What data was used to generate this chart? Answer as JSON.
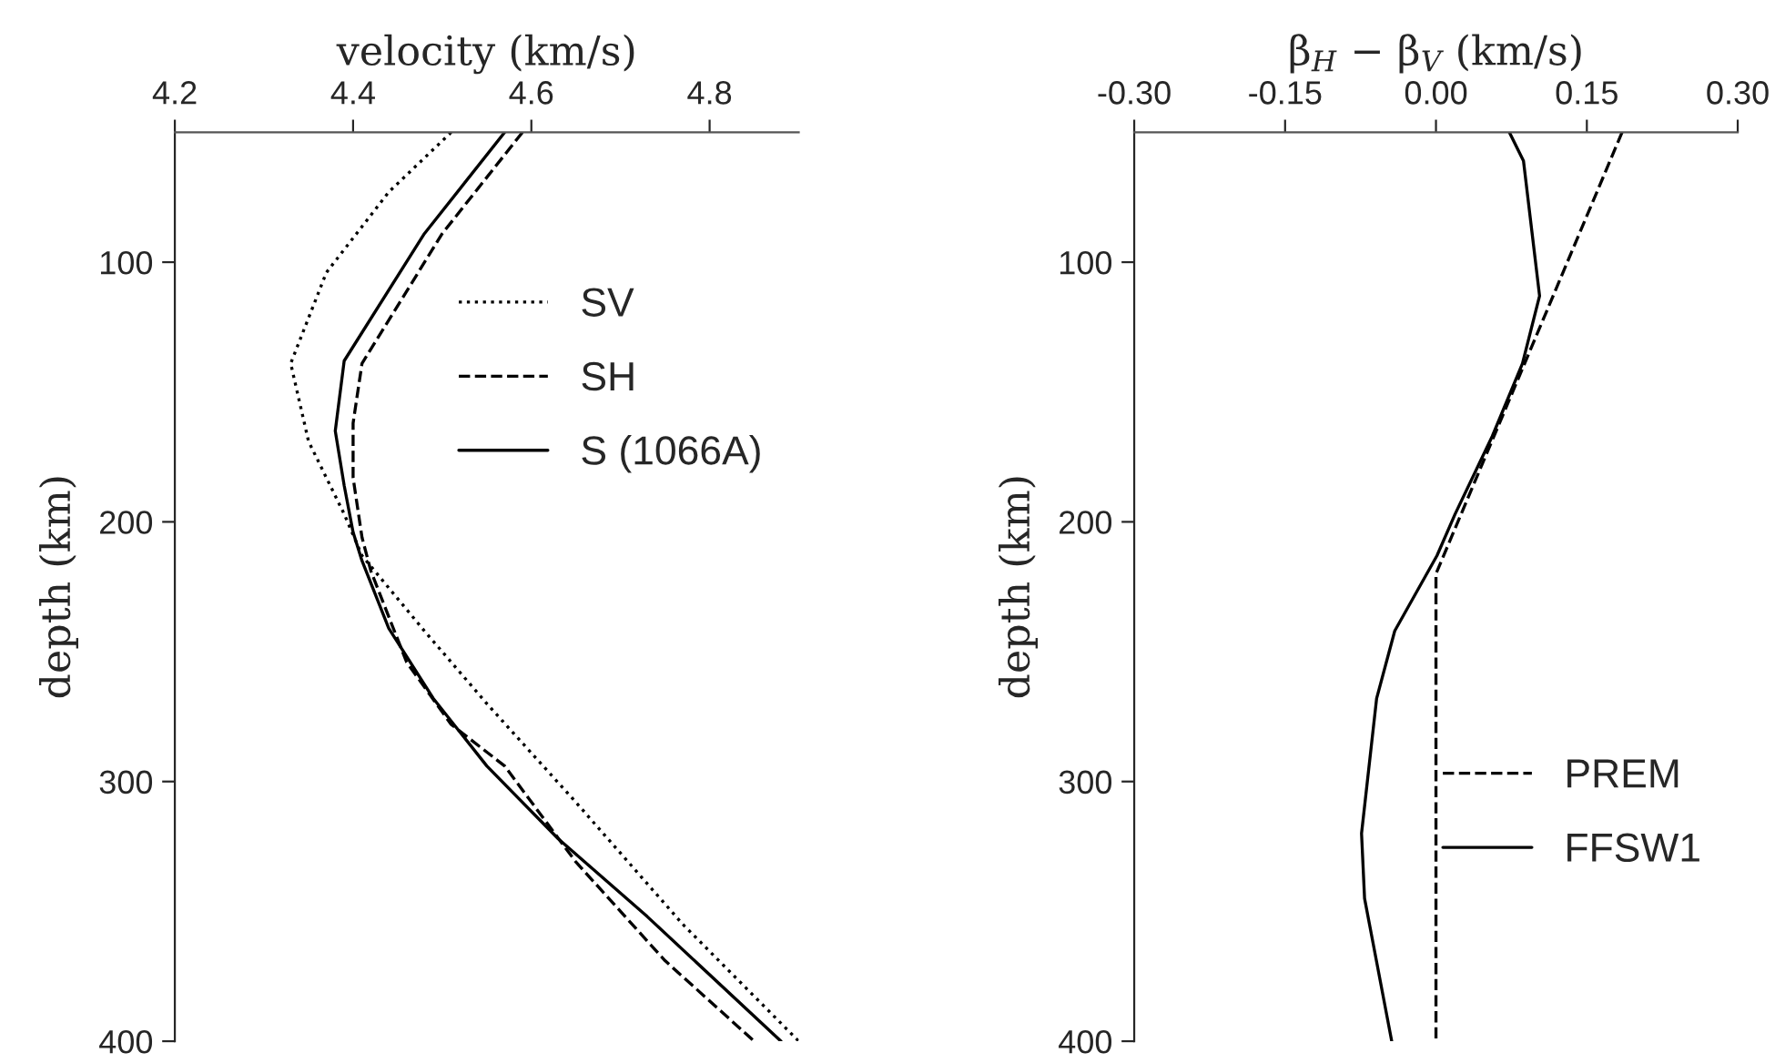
{
  "chart_data": [
    {
      "type": "line",
      "xlabel": "velocity (km/s)",
      "ylabel": "depth (km)",
      "xlim": [
        4.2,
        4.9
      ],
      "xticks": [
        4.2,
        4.4,
        4.6,
        4.8
      ],
      "ylim": [
        400,
        50
      ],
      "yticks": [
        100,
        200,
        300,
        400
      ],
      "legend": "top right",
      "grid": false,
      "series": [
        {
          "name": "SV",
          "color": "#000000",
          "line_style": "dotted",
          "x": [
            4.51,
            4.44,
            4.37,
            4.33,
            4.35,
            4.39,
            4.41,
            4.48,
            4.55,
            4.65,
            4.77,
            4.9
          ],
          "values": [
            50,
            73,
            104,
            139,
            169,
            197,
            213,
            242,
            270,
            308,
            355,
            400
          ]
        },
        {
          "name": "SH",
          "color": "#000000",
          "line_style": "dashed",
          "x": [
            4.59,
            4.5,
            4.41,
            4.4,
            4.4,
            4.41,
            4.42,
            4.46,
            4.51,
            4.57,
            4.65,
            4.75,
            4.85
          ],
          "values": [
            50,
            89,
            139,
            162,
            183,
            206,
            219,
            254,
            278,
            294,
            331,
            369,
            400
          ]
        },
        {
          "name": "S (1066A)",
          "color": "#000000",
          "line_style": "solid",
          "x": [
            4.57,
            4.48,
            4.39,
            4.38,
            4.39,
            4.4,
            4.41,
            4.44,
            4.49,
            4.55,
            4.63,
            4.73,
            4.88
          ],
          "values": [
            50,
            89,
            138,
            165,
            186,
            204,
            215,
            241,
            268,
            294,
            322,
            352,
            400
          ]
        }
      ]
    },
    {
      "type": "line",
      "xlabel": "β$_{H}$ − β$_{V}$ (km/s)",
      "ylabel": "depth (km)",
      "xlim": [
        -0.3,
        0.3
      ],
      "xticks": [
        {
          "value": -0.3,
          "label": "-0.30"
        },
        {
          "value": -0.15,
          "label": "-0.15"
        },
        {
          "value": 0,
          "label": "0.00"
        },
        {
          "value": 0.15,
          "label": "0.15"
        },
        {
          "value": 0.3,
          "label": "0.30"
        }
      ],
      "ylim": [
        400,
        50
      ],
      "yticks": [
        100,
        200,
        300,
        400
      ],
      "legend": "right",
      "grid": false,
      "series": [
        {
          "name": "PREM",
          "color": "#000000",
          "line_style": "dashed",
          "x": [
            0.185,
            0.0,
            0.0
          ],
          "values": [
            50,
            220,
            400
          ]
        },
        {
          "name": "FFSW1",
          "color": "#000000",
          "line_style": "solid",
          "x": [
            0.073,
            0.087,
            0.103,
            0.086,
            0.056,
            0.019,
            0.001,
            -0.041,
            -0.059,
            -0.074,
            -0.071,
            -0.044
          ],
          "values": [
            50,
            61,
            113,
            139,
            167,
            197,
            213,
            242,
            268,
            320,
            345,
            400
          ]
        }
      ]
    }
  ]
}
